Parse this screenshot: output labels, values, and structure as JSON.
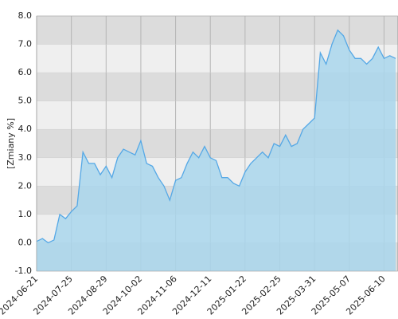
{
  "chart_data": {
    "type": "area",
    "y_label": "[Zmiany %]",
    "categories": [
      "2024-06-21",
      null,
      null,
      null,
      null,
      null,
      "2024-07-25",
      null,
      null,
      null,
      null,
      null,
      "2024-08-29",
      null,
      null,
      null,
      null,
      null,
      "2024-10-02",
      null,
      null,
      null,
      null,
      null,
      "2024-11-06",
      null,
      null,
      null,
      null,
      null,
      "2024-12-11",
      null,
      null,
      null,
      null,
      null,
      "2025-01-22",
      null,
      null,
      null,
      null,
      null,
      "2025-02-25",
      null,
      null,
      null,
      null,
      null,
      "2025-03-31",
      null,
      null,
      null,
      null,
      null,
      "2025-05-07",
      null,
      null,
      null,
      null,
      null,
      "2025-06-10",
      null,
      null
    ],
    "values": [
      0.05,
      0.15,
      0.0,
      0.1,
      1.0,
      0.85,
      1.1,
      1.3,
      3.2,
      2.8,
      2.8,
      2.4,
      2.7,
      2.3,
      3.0,
      3.3,
      3.2,
      3.1,
      3.6,
      2.8,
      2.7,
      2.3,
      2.0,
      1.5,
      2.2,
      2.3,
      2.8,
      3.2,
      3.0,
      3.4,
      3.0,
      2.9,
      2.3,
      2.3,
      2.1,
      2.0,
      2.5,
      2.8,
      3.0,
      3.2,
      3.0,
      3.5,
      3.4,
      3.8,
      3.4,
      3.5,
      4.0,
      4.2,
      4.4,
      6.7,
      6.3,
      7.0,
      7.5,
      7.3,
      6.8,
      6.5,
      6.5,
      6.3,
      6.5,
      6.9,
      6.5,
      6.6,
      6.5
    ],
    "color": "#55a8e6",
    "fill": "#a9d6ec",
    "ylim": [
      -1,
      8
    ],
    "yticks": [
      {
        "value": -1,
        "label": "-1.0"
      },
      {
        "value": 0,
        "label": "0.0"
      },
      {
        "value": 1,
        "label": "1.0"
      },
      {
        "value": 2,
        "label": "2.0"
      },
      {
        "value": 3,
        "label": "3.0"
      },
      {
        "value": 4,
        "label": "4.0"
      },
      {
        "value": 5,
        "label": "5.0"
      },
      {
        "value": 6,
        "label": "6.0"
      },
      {
        "value": 7,
        "label": "7.0"
      },
      {
        "value": 8,
        "label": "8.0"
      }
    ],
    "grid": true
  }
}
